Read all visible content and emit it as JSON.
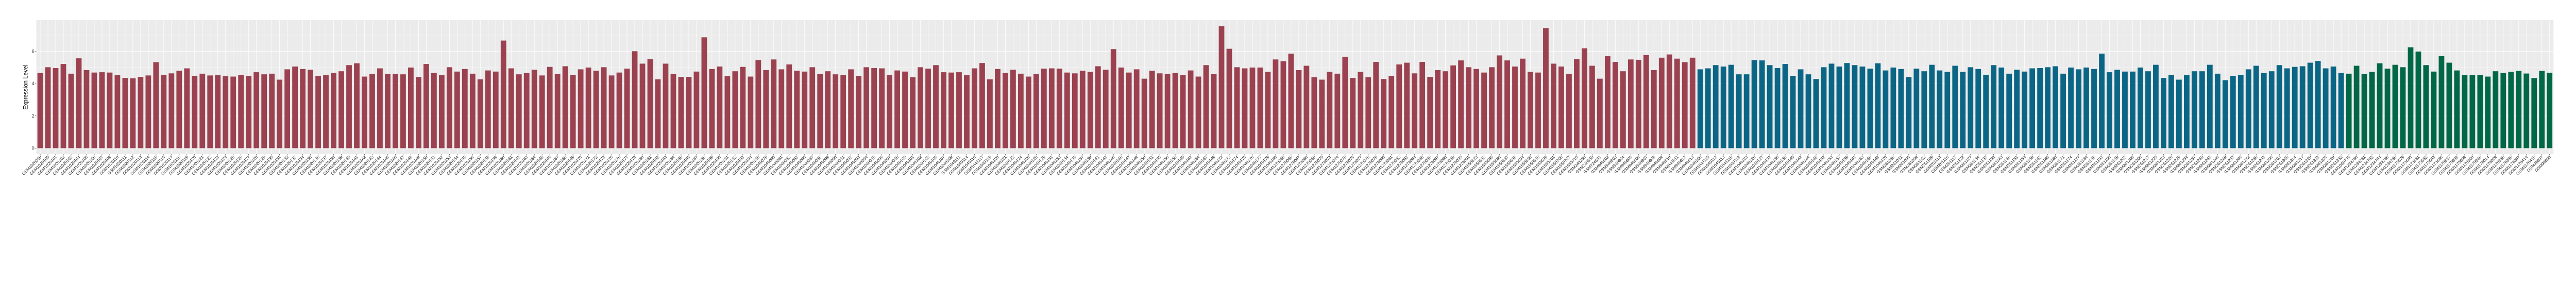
{
  "chart_data": {
    "type": "bar",
    "title": "",
    "xlabel": "",
    "ylabel": "Expression Level",
    "ylim": [
      -0.37,
      7.92
    ],
    "yticks": [
      0,
      2,
      4,
      6
    ],
    "grid": true,
    "legend": "none",
    "background": "#ebebeb",
    "series": [
      {
        "color": "#9b4150",
        "categories": [
          "GSM1020099",
          "GSM1020100",
          "GSM1020101",
          "GSM1020102",
          "GSM1020103",
          "GSM1020104",
          "GSM1020105",
          "GSM1020106",
          "GSM1020107",
          "GSM1020109",
          "GSM1020110",
          "GSM1020111",
          "GSM1020112",
          "GSM1020113",
          "GSM1020114",
          "GSM1020115",
          "GSM1020116",
          "GSM1020117",
          "GSM1020118",
          "GSM1020119",
          "GSM1020120",
          "GSM1020121",
          "GSM1020122",
          "GSM1020123",
          "GSM1020124",
          "GSM1020125",
          "GSM1020126",
          "GSM1020127",
          "GSM1020128",
          "GSM1020129",
          "GSM1020130",
          "GSM1020131",
          "GSM1020132",
          "GSM1020133",
          "GSM1020134",
          "GSM1020135",
          "GSM1020136",
          "GSM1020137",
          "GSM1020138",
          "GSM1020139",
          "GSM1020140",
          "GSM1020141",
          "GSM1020142",
          "GSM1020143",
          "GSM1020144",
          "GSM1020145",
          "GSM1020146",
          "GSM1020147",
          "GSM1020148",
          "GSM1020149",
          "GSM1020150",
          "GSM1020151",
          "GSM1020152",
          "GSM1020153",
          "GSM1020154",
          "GSM1020155",
          "GSM1020156",
          "GSM1020157",
          "GSM1020158",
          "GSM1020159",
          "GSM1020160",
          "GSM1020161",
          "GSM1020162",
          "GSM1020163",
          "GSM1020164",
          "GSM1020165",
          "GSM1020166",
          "GSM1020167",
          "GSM1020168",
          "GSM1020169",
          "GSM1020170",
          "GSM1020171",
          "GSM1020172",
          "GSM1020173",
          "GSM1020175",
          "GSM1020176",
          "GSM1020177",
          "GSM1020178",
          "GSM1020180",
          "GSM1020181",
          "GSM1020182",
          "GSM1020183",
          "GSM1020184",
          "GSM1020185",
          "GSM1020186",
          "GSM1020187",
          "GSM1020188",
          "GSM1020189",
          "GSM1020190",
          "GSM1020191",
          "GSM1020192",
          "GSM1020193",
          "GSM1020194",
          "GSM1020195",
          "GSM1049079",
          "GSM1049080",
          "GSM1049081",
          "GSM1049082",
          "GSM1049083",
          "GSM1049086",
          "GSM1049087",
          "GSM1049088",
          "GSM1049089",
          "GSM1049090",
          "GSM1049091",
          "GSM1049092",
          "GSM1049093",
          "GSM1049094",
          "GSM1049095",
          "GSM1049096",
          "GSM1049097",
          "GSM1049098",
          "GSM1049100",
          "GSM1049101",
          "GSM1049102",
          "GSM1049103",
          "GSM1049105",
          "GSM1049107",
          "GSM1049109",
          "GSM1049111",
          "GSM1049114",
          "GSM1049116",
          "GSM1049117",
          "GSM1049119",
          "GSM1049120",
          "GSM1049121",
          "GSM1049122",
          "GSM1049124",
          "GSM1049125",
          "GSM1049128",
          "GSM1049129",
          "GSM1049131",
          "GSM1049133",
          "GSM1049134",
          "GSM1049136",
          "GSM1049137",
          "GSM1049139",
          "GSM1049141",
          "GSM1049143",
          "GSM1049145",
          "GSM1049146",
          "GSM1049147",
          "GSM1049149",
          "GSM1049150",
          "GSM1049151",
          "GSM1049155",
          "GSM1049156",
          "GSM1049158",
          "GSM1049160",
          "GSM1049162",
          "GSM1049164",
          "GSM1049167",
          "GSM1049169",
          "GSM1049172",
          "GSM1049173",
          "GSM1049174",
          "GSM1049175",
          "GSM1049176",
          "GSM1049177",
          "GSM1049179",
          "GSM1049180",
          "GSM1278065",
          "GSM1278066",
          "GSM1278067",
          "GSM1278068",
          "GSM1278069",
          "GSM1278070",
          "GSM1278073",
          "GSM1278074",
          "GSM1278075",
          "GSM1278076",
          "GSM1278077",
          "GSM1278078",
          "GSM1278079",
          "GSM1278080",
          "GSM1278081",
          "GSM1278082",
          "GSM1278083",
          "GSM1278084",
          "GSM1278085",
          "GSM1278086",
          "GSM1278087",
          "GSM1278088",
          "GSM1278089",
          "GSM1278090",
          "GSM1278091",
          "GSM1555673",
          "GSM1555683",
          "GSM1555685",
          "GSM1555686",
          "GSM1555687",
          "GSM1555688",
          "GSM1555694",
          "GSM1555695",
          "GSM1555696",
          "GSM1555699",
          "GSM1555701",
          "GSM1555705",
          "GSM1555707",
          "GSM1555710",
          "GSM248238",
          "GSM248650",
          "GSM724651",
          "GSM949802",
          "GSM949803",
          "GSM949804",
          "GSM949805",
          "GSM949806",
          "GSM949807",
          "GSM949808",
          "GSM949809",
          "GSM949810",
          "GSM949811",
          "GSM949812",
          "GSM949813"
        ],
        "values": [
          4.65,
          5.01,
          4.96,
          5.21,
          4.61,
          5.56,
          4.83,
          4.68,
          4.7,
          4.68,
          4.52,
          4.35,
          4.32,
          4.41,
          4.5,
          5.32,
          4.54,
          4.63,
          4.79,
          4.94,
          4.48,
          4.61,
          4.5,
          4.52,
          4.46,
          4.43,
          4.52,
          4.48,
          4.7,
          4.57,
          4.61,
          4.24,
          4.88,
          5.05,
          4.9,
          4.85,
          4.48,
          4.52,
          4.65,
          4.76,
          5.14,
          5.25,
          4.43,
          4.59,
          4.94,
          4.59,
          4.59,
          4.57,
          4.99,
          4.41,
          5.21,
          4.65,
          4.52,
          5.01,
          4.74,
          4.9,
          4.61,
          4.26,
          4.81,
          4.74,
          6.66,
          4.94,
          4.57,
          4.65,
          4.85,
          4.5,
          5.03,
          4.59,
          5.07,
          4.54,
          4.88,
          4.99,
          4.79,
          5.01,
          4.5,
          4.68,
          4.92,
          6.0,
          5.23,
          5.51,
          4.26,
          5.23,
          4.59,
          4.41,
          4.41,
          4.74,
          6.86,
          4.9,
          5.05,
          4.46,
          4.76,
          5.03,
          4.43,
          5.45,
          4.83,
          5.49,
          4.88,
          5.18,
          4.79,
          4.74,
          5.01,
          4.59,
          4.76,
          4.57,
          4.52,
          4.88,
          4.48,
          5.01,
          4.96,
          4.94,
          4.52,
          4.81,
          4.74,
          4.39,
          5.01,
          4.92,
          5.14,
          4.7,
          4.68,
          4.7,
          4.52,
          4.94,
          5.27,
          4.26,
          4.9,
          4.65,
          4.85,
          4.61,
          4.43,
          4.59,
          4.92,
          4.94,
          4.92,
          4.68,
          4.63,
          4.79,
          4.72,
          5.07,
          4.85,
          6.13,
          4.99,
          4.68,
          4.88,
          4.3,
          4.79,
          4.63,
          4.59,
          4.65,
          4.52,
          4.81,
          4.43,
          5.14,
          4.59,
          7.54,
          6.15,
          5.01,
          4.94,
          4.99,
          4.99,
          4.72,
          5.49,
          5.38,
          5.85,
          4.83,
          5.1,
          4.39,
          4.24,
          4.72,
          4.61,
          5.65,
          4.35,
          4.72,
          4.39,
          5.34,
          4.28,
          4.48,
          5.18,
          5.29,
          4.63,
          5.34,
          4.41,
          4.83,
          4.76,
          5.12,
          5.43,
          5.01,
          4.9,
          4.68,
          5.01,
          5.74,
          5.43,
          5.05,
          5.54,
          4.72,
          4.68,
          7.43,
          5.23,
          5.05,
          4.59,
          5.51,
          6.18,
          5.1,
          4.3,
          5.69,
          5.34,
          4.76,
          5.49,
          5.47,
          5.76,
          4.83,
          5.6,
          5.8,
          5.54,
          5.32,
          5.6
        ]
      },
      {
        "color": "#0b6686",
        "categories": [
          "GSM1049106",
          "GSM1049110",
          "GSM1049112",
          "GSM1049113",
          "GSM1049115",
          "GSM1049118",
          "GSM1049123",
          "GSM1049126",
          "GSM1049127",
          "GSM1049132",
          "GSM1049135",
          "GSM1049138",
          "GSM1049140",
          "GSM1049142",
          "GSM1049144",
          "GSM1049148",
          "GSM1049152",
          "GSM1049153",
          "GSM1049157",
          "GSM1049159",
          "GSM1049161",
          "GSM1049163",
          "GSM1049166",
          "GSM1049168",
          "GSM1049170",
          "GSM261088",
          "GSM261091",
          "GSM261096",
          "GSM261099",
          "GSM261102",
          "GSM261109",
          "GSM261113",
          "GSM261116",
          "GSM261117",
          "GSM261122",
          "GSM261127",
          "GSM261134",
          "GSM261137",
          "GSM261138",
          "GSM261143",
          "GSM261146",
          "GSM261151",
          "GSM261154",
          "GSM261159",
          "GSM261162",
          "GSM261165",
          "GSM261168",
          "GSM261171",
          "GSM261174",
          "GSM261177",
          "GSM261184",
          "GSM261188",
          "GSM261193",
          "GSM261196",
          "GSM261199",
          "GSM261202",
          "GSM261205",
          "GSM261206",
          "GSM261217",
          "GSM261220",
          "GSM261223",
          "GSM261226",
          "GSM261229",
          "GSM261234",
          "GSM261237",
          "GSM261240",
          "GSM261243",
          "GSM261246",
          "GSM261249",
          "GSM261257",
          "GSM261266",
          "GSM261272",
          "GSM261286",
          "GSM261293",
          "GSM261296",
          "GSM261303",
          "GSM261306",
          "GSM261314",
          "GSM261317",
          "GSM261320",
          "GSM261323",
          "GSM261326",
          "GSM261329",
          "GSM261332"
        ],
        "values": [
          4.88,
          4.94,
          5.14,
          5.05,
          5.16,
          4.57,
          4.57,
          5.45,
          5.43,
          5.14,
          4.96,
          5.21,
          4.48,
          4.88,
          4.57,
          4.28,
          5.01,
          5.23,
          5.05,
          5.27,
          5.14,
          5.05,
          4.92,
          5.25,
          4.81,
          4.99,
          4.9,
          4.41,
          4.92,
          4.76,
          5.16,
          4.81,
          4.72,
          5.1,
          4.72,
          5.01,
          4.9,
          4.54,
          5.14,
          4.99,
          4.61,
          4.85,
          4.74,
          4.94,
          4.96,
          5.01,
          5.07,
          4.61,
          4.99,
          4.88,
          4.99,
          4.9,
          5.85,
          4.7,
          4.85,
          4.74,
          4.74,
          4.99,
          4.76,
          5.16,
          4.35,
          4.54,
          4.24,
          4.52,
          4.76,
          4.76,
          5.16,
          4.61,
          4.21,
          4.48,
          4.54,
          4.88,
          5.1,
          4.65,
          4.76,
          5.14,
          4.94,
          5.03,
          5.07,
          5.29,
          5.4,
          4.94,
          5.05,
          4.65
        ]
      },
      {
        "color": "#006747",
        "categories": [
          "GSM1060736",
          "GSM1234780",
          "GSM1234781",
          "GSM1234782",
          "GSM1234784",
          "GSM1234785",
          "GSM1234786",
          "GSM1173679",
          "GSM1173680",
          "GSM1173681",
          "GSM1173682",
          "GSM1173683",
          "GSM1173685",
          "GSM1175897",
          "GSM1175898",
          "GSM1175899",
          "GSM1175900",
          "GSM1175946",
          "GSM1176014",
          "GSM1176029",
          "GSM1176385",
          "GSM1176386",
          "GSM1176387",
          "GSM1176414",
          "GSM1176415",
          "GSM96897",
          "GSM96898"
        ],
        "values": [
          4.61,
          5.1,
          4.59,
          4.72,
          5.25,
          4.92,
          5.16,
          5.01,
          6.24,
          5.98,
          5.14,
          4.74,
          5.69,
          5.29,
          4.81,
          4.52,
          4.53,
          4.53,
          4.43,
          4.76,
          4.65,
          4.72,
          4.78,
          4.62,
          4.34,
          4.78,
          4.67
        ]
      }
    ]
  }
}
